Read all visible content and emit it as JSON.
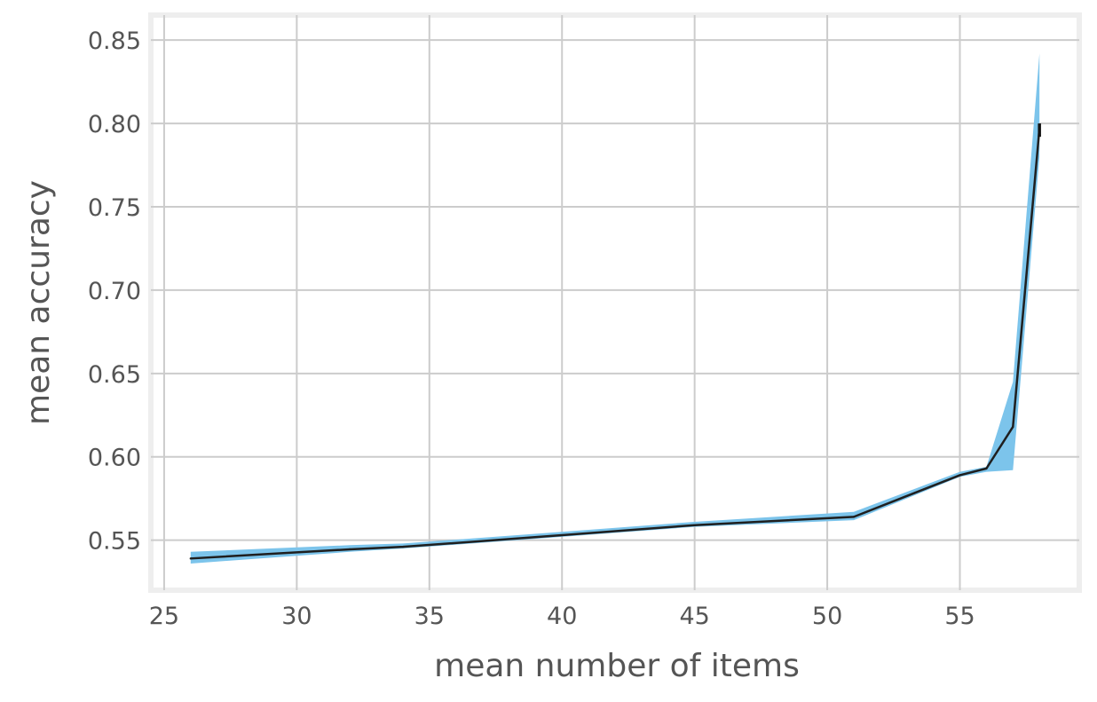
{
  "chart_data": {
    "type": "line",
    "title": "",
    "xlabel": "mean number of items",
    "ylabel": "mean accuracy",
    "xlim": [
      24.5,
      59.5
    ],
    "ylim": [
      0.52,
      0.865
    ],
    "xticks": [
      25,
      30,
      35,
      40,
      45,
      50,
      55
    ],
    "yticks": [
      0.55,
      0.6,
      0.65,
      0.7,
      0.75,
      0.8,
      0.85
    ],
    "xtick_labels": [
      "25",
      "30",
      "35",
      "40",
      "45",
      "50",
      "55"
    ],
    "ytick_labels": [
      "0.55",
      "0.60",
      "0.65",
      "0.70",
      "0.75",
      "0.80",
      "0.85"
    ],
    "grid": true,
    "series": [
      {
        "x": [
          26,
          32,
          34,
          40,
          45,
          51,
          55,
          56,
          57,
          58
        ],
        "values": [
          0.539,
          0.5445,
          0.546,
          0.553,
          0.559,
          0.564,
          0.589,
          0.593,
          0.618,
          0.797
        ],
        "lower": [
          0.536,
          0.543,
          0.545,
          0.552,
          0.558,
          0.562,
          0.588,
          0.591,
          0.592,
          0.78
        ],
        "upper": [
          0.543,
          0.547,
          0.548,
          0.555,
          0.561,
          0.567,
          0.591,
          0.594,
          0.645,
          0.842
        ],
        "color": "#1f1f1f",
        "band_color": "#7cc4eb"
      }
    ],
    "end_marker": {
      "x": 58,
      "ymin": 0.792,
      "ymax": 0.8
    }
  }
}
